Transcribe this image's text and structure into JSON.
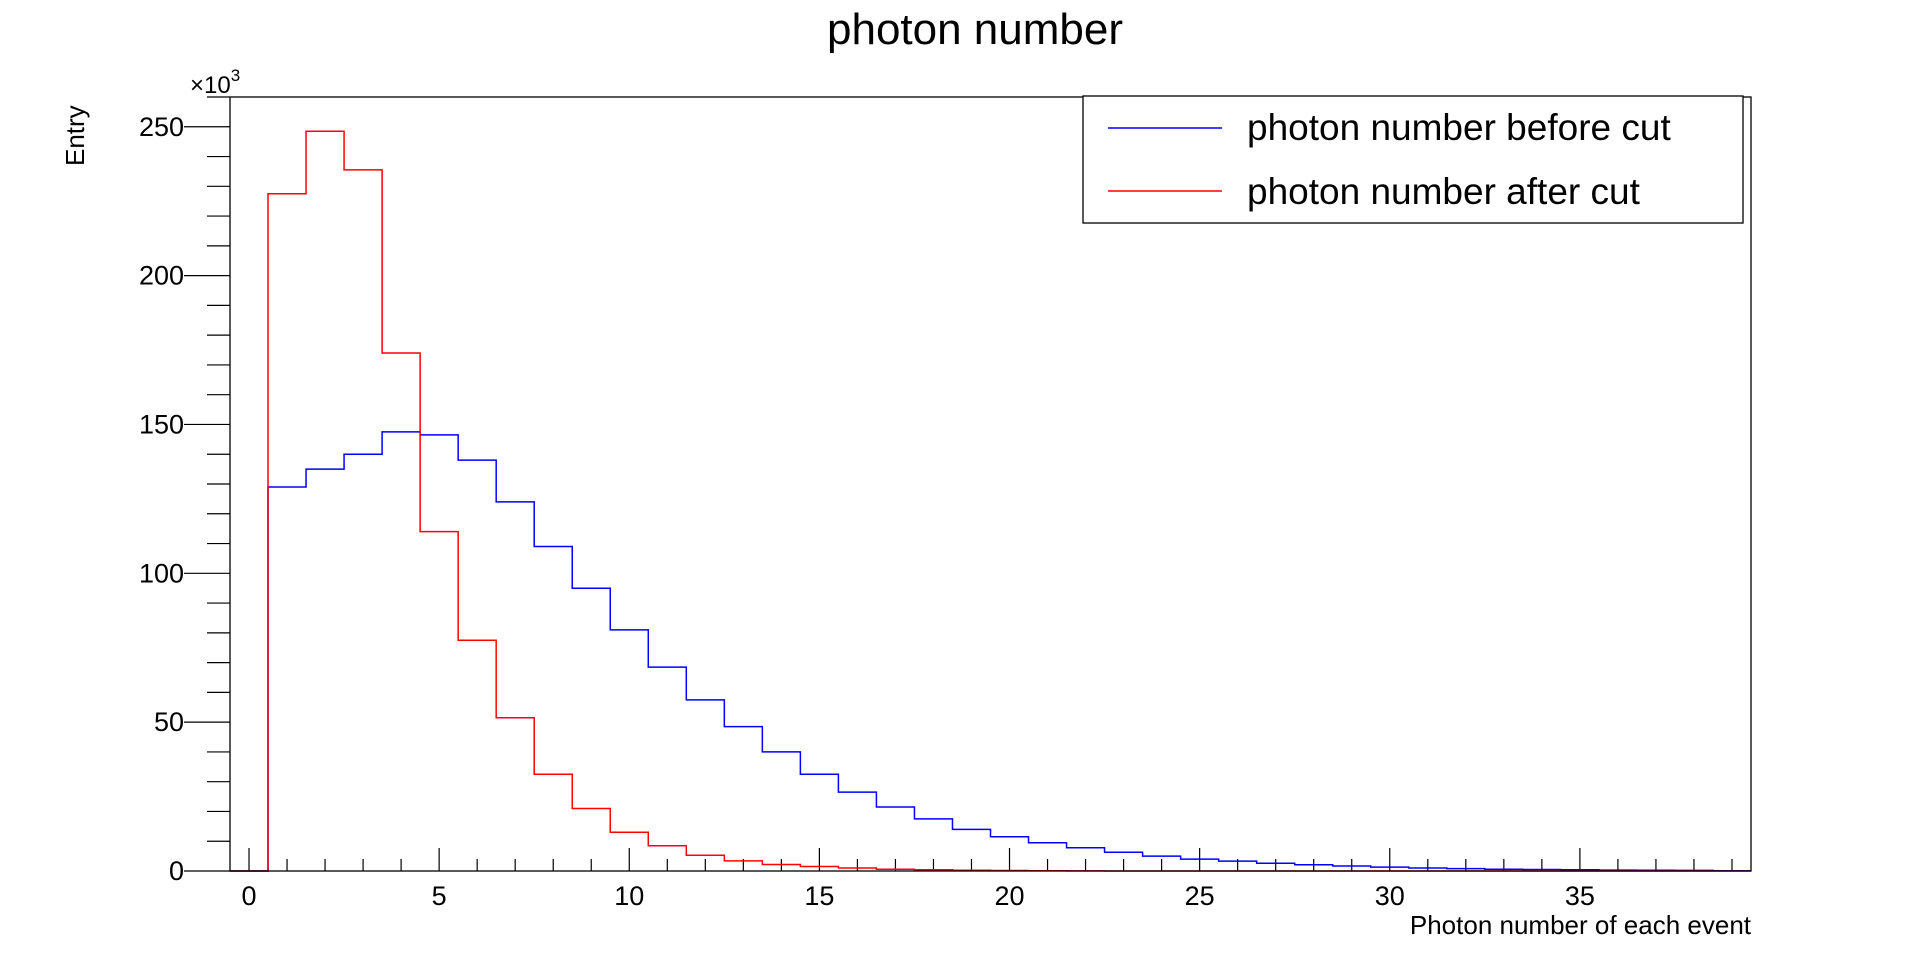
{
  "chart_data": {
    "type": "histogram",
    "title": "photon number",
    "xlabel": "Photon number of each event",
    "ylabel": "Entry",
    "y_multiplier": "×10",
    "y_multiplier_exponent": "3",
    "xlim": [
      -0.5,
      39.5
    ],
    "ylim": [
      0,
      260
    ],
    "bin_width": 1,
    "x_ticks": [
      0,
      5,
      10,
      15,
      20,
      25,
      30,
      35
    ],
    "x_tick_labels": [
      "0",
      "5",
      "10",
      "15",
      "20",
      "25",
      "30",
      "35"
    ],
    "y_ticks": [
      0,
      50,
      100,
      150,
      200,
      250
    ],
    "y_tick_labels": [
      "0",
      "50",
      "100",
      "150",
      "200",
      "250"
    ],
    "grid": false,
    "legend_position": "top-right",
    "bin_centers": [
      0,
      1,
      2,
      3,
      4,
      5,
      6,
      7,
      8,
      9,
      10,
      11,
      12,
      13,
      14,
      15,
      16,
      17,
      18,
      19,
      20,
      21,
      22,
      23,
      24,
      25,
      26,
      27,
      28,
      29,
      30,
      31,
      32,
      33,
      34,
      35,
      36,
      37,
      38,
      39
    ],
    "series": [
      {
        "name": "photon number before cut",
        "color": "#0000ff",
        "values": [
          0,
          129,
          135,
          140,
          147.5,
          146.5,
          138,
          124,
          109,
          95,
          81,
          68.5,
          57.5,
          48.5,
          40,
          32.5,
          26.5,
          21.5,
          17.5,
          14,
          11.5,
          9.5,
          7.8,
          6.3,
          5,
          4,
          3.3,
          2.6,
          2.1,
          1.7,
          1.3,
          1,
          0.8,
          0.6,
          0.5,
          0.4,
          0.3,
          0.25,
          0.2,
          0.1
        ]
      },
      {
        "name": "photon number after cut",
        "color": "#ff0000",
        "values": [
          0,
          227.5,
          248.5,
          235.5,
          174,
          114,
          77.5,
          51.5,
          32.5,
          21,
          13,
          8.5,
          5.3,
          3.4,
          2.2,
          1.5,
          1,
          0.6,
          0.4,
          0.25,
          0.15,
          0.1,
          0.05,
          0,
          0,
          0,
          0,
          0,
          0,
          0,
          0,
          0,
          0,
          0,
          0,
          0,
          0,
          0,
          0,
          0
        ]
      }
    ]
  }
}
